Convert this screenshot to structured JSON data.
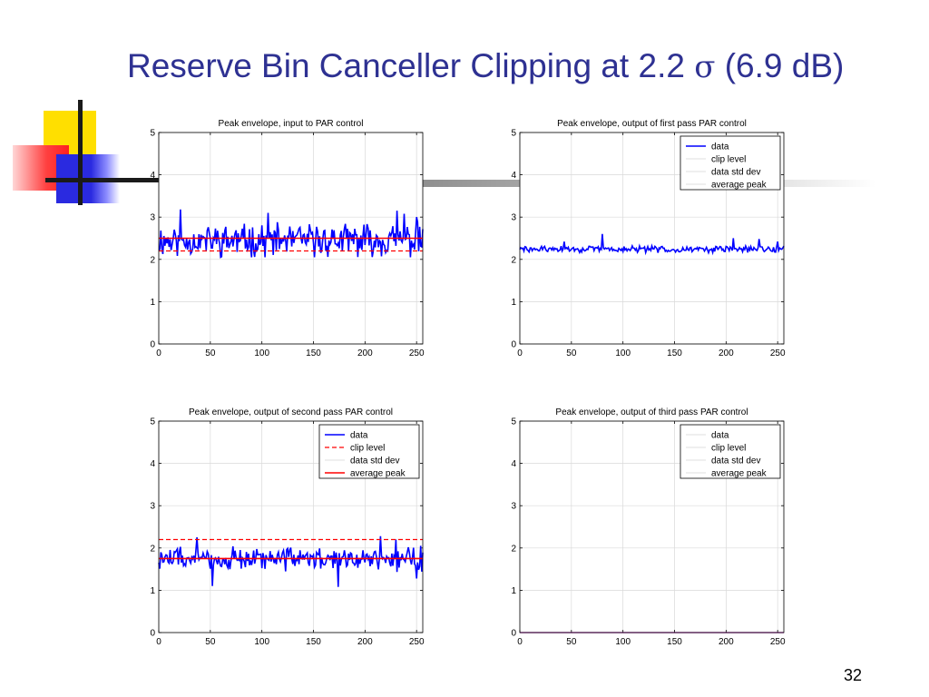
{
  "slide": {
    "title_main": "Reserve Bin Canceller Clipping at 2.2 ",
    "title_sigma": "σ",
    "title_tail": " (6.9 dB)",
    "page_number": "32",
    "accent_color": "#2e3192"
  },
  "chart_data": [
    {
      "type": "line",
      "title": "Peak envelope, input to PAR control",
      "xlim": [
        0,
        256
      ],
      "ylim": [
        0,
        5
      ],
      "xticks": [
        0,
        50,
        100,
        150,
        200,
        250
      ],
      "yticks": [
        0,
        1,
        2,
        3,
        4,
        5
      ],
      "grid": true,
      "legend": null,
      "series": [
        {
          "style": "data",
          "color": "#0000ff",
          "seed": 11,
          "mean": 2.45,
          "spread": 0.3,
          "min": 2.05,
          "max": 3.2,
          "n": 257,
          "peaks": [
            [
              21,
              3.18
            ],
            [
              106,
              3.1
            ],
            [
              231,
              3.15
            ],
            [
              238,
              3.08
            ],
            [
              250,
              3.0
            ]
          ]
        },
        {
          "style": "clip",
          "color": "#ff0000",
          "value": 2.2
        },
        {
          "style": "avg",
          "color": "#ff0000",
          "value": 2.5
        }
      ]
    },
    {
      "type": "line",
      "title": "Peak envelope, output of first pass PAR control",
      "xlim": [
        0,
        256
      ],
      "ylim": [
        0,
        5
      ],
      "xticks": [
        0,
        50,
        100,
        150,
        200,
        250
      ],
      "yticks": [
        0,
        1,
        2,
        3,
        4,
        5
      ],
      "grid": true,
      "legend": {
        "position": "top-right",
        "entries": [
          "data",
          "clip level",
          "data std dev",
          "average peak"
        ],
        "styles": [
          "data",
          "faint",
          "faint",
          "faint"
        ]
      },
      "series": [
        {
          "style": "data",
          "color": "#0000ff",
          "seed": 29,
          "mean": 2.24,
          "spread": 0.06,
          "min": 2.05,
          "max": 2.6,
          "n": 257,
          "peaks": [
            [
              80,
              2.6
            ],
            [
              207,
              2.5
            ],
            [
              232,
              2.48
            ],
            [
              250,
              2.42
            ],
            [
              43,
              2.42
            ]
          ]
        }
      ]
    },
    {
      "type": "line",
      "title": "Peak envelope, output of second pass PAR control",
      "xlim": [
        0,
        256
      ],
      "ylim": [
        0,
        5
      ],
      "xticks": [
        0,
        50,
        100,
        150,
        200,
        250
      ],
      "yticks": [
        0,
        1,
        2,
        3,
        4,
        5
      ],
      "grid": true,
      "legend": {
        "position": "top-right",
        "entries": [
          "data",
          "clip level",
          "data std dev",
          "average peak"
        ],
        "styles": [
          "data",
          "clip",
          "faint",
          "avg"
        ]
      },
      "series": [
        {
          "style": "data",
          "color": "#0000ff",
          "seed": 47,
          "mean": 1.75,
          "spread": 0.22,
          "min": 1.05,
          "max": 2.28,
          "n": 257,
          "peaks": [
            [
              37,
              2.25
            ],
            [
              215,
              2.28
            ],
            [
              230,
              2.2
            ]
          ],
          "dips": [
            [
              52,
              1.1
            ],
            [
              174,
              1.08
            ],
            [
              250,
              1.28
            ]
          ]
        },
        {
          "style": "clip",
          "color": "#ff0000",
          "value": 2.2
        },
        {
          "style": "avg",
          "color": "#ff0000",
          "value": 1.75
        }
      ]
    },
    {
      "type": "line",
      "title": "Peak envelope, output of third pass PAR control",
      "xlim": [
        0,
        256
      ],
      "ylim": [
        0,
        5
      ],
      "xticks": [
        0,
        50,
        100,
        150,
        200,
        250
      ],
      "yticks": [
        0,
        1,
        2,
        3,
        4,
        5
      ],
      "grid": true,
      "legend": {
        "position": "top-right",
        "entries": [
          "data",
          "clip level",
          "data std dev",
          "average peak"
        ],
        "styles": [
          "faint",
          "faint",
          "faint",
          "faint"
        ]
      },
      "series": [
        {
          "style": "flat",
          "color": "#a000a0",
          "value": 0
        }
      ]
    }
  ]
}
